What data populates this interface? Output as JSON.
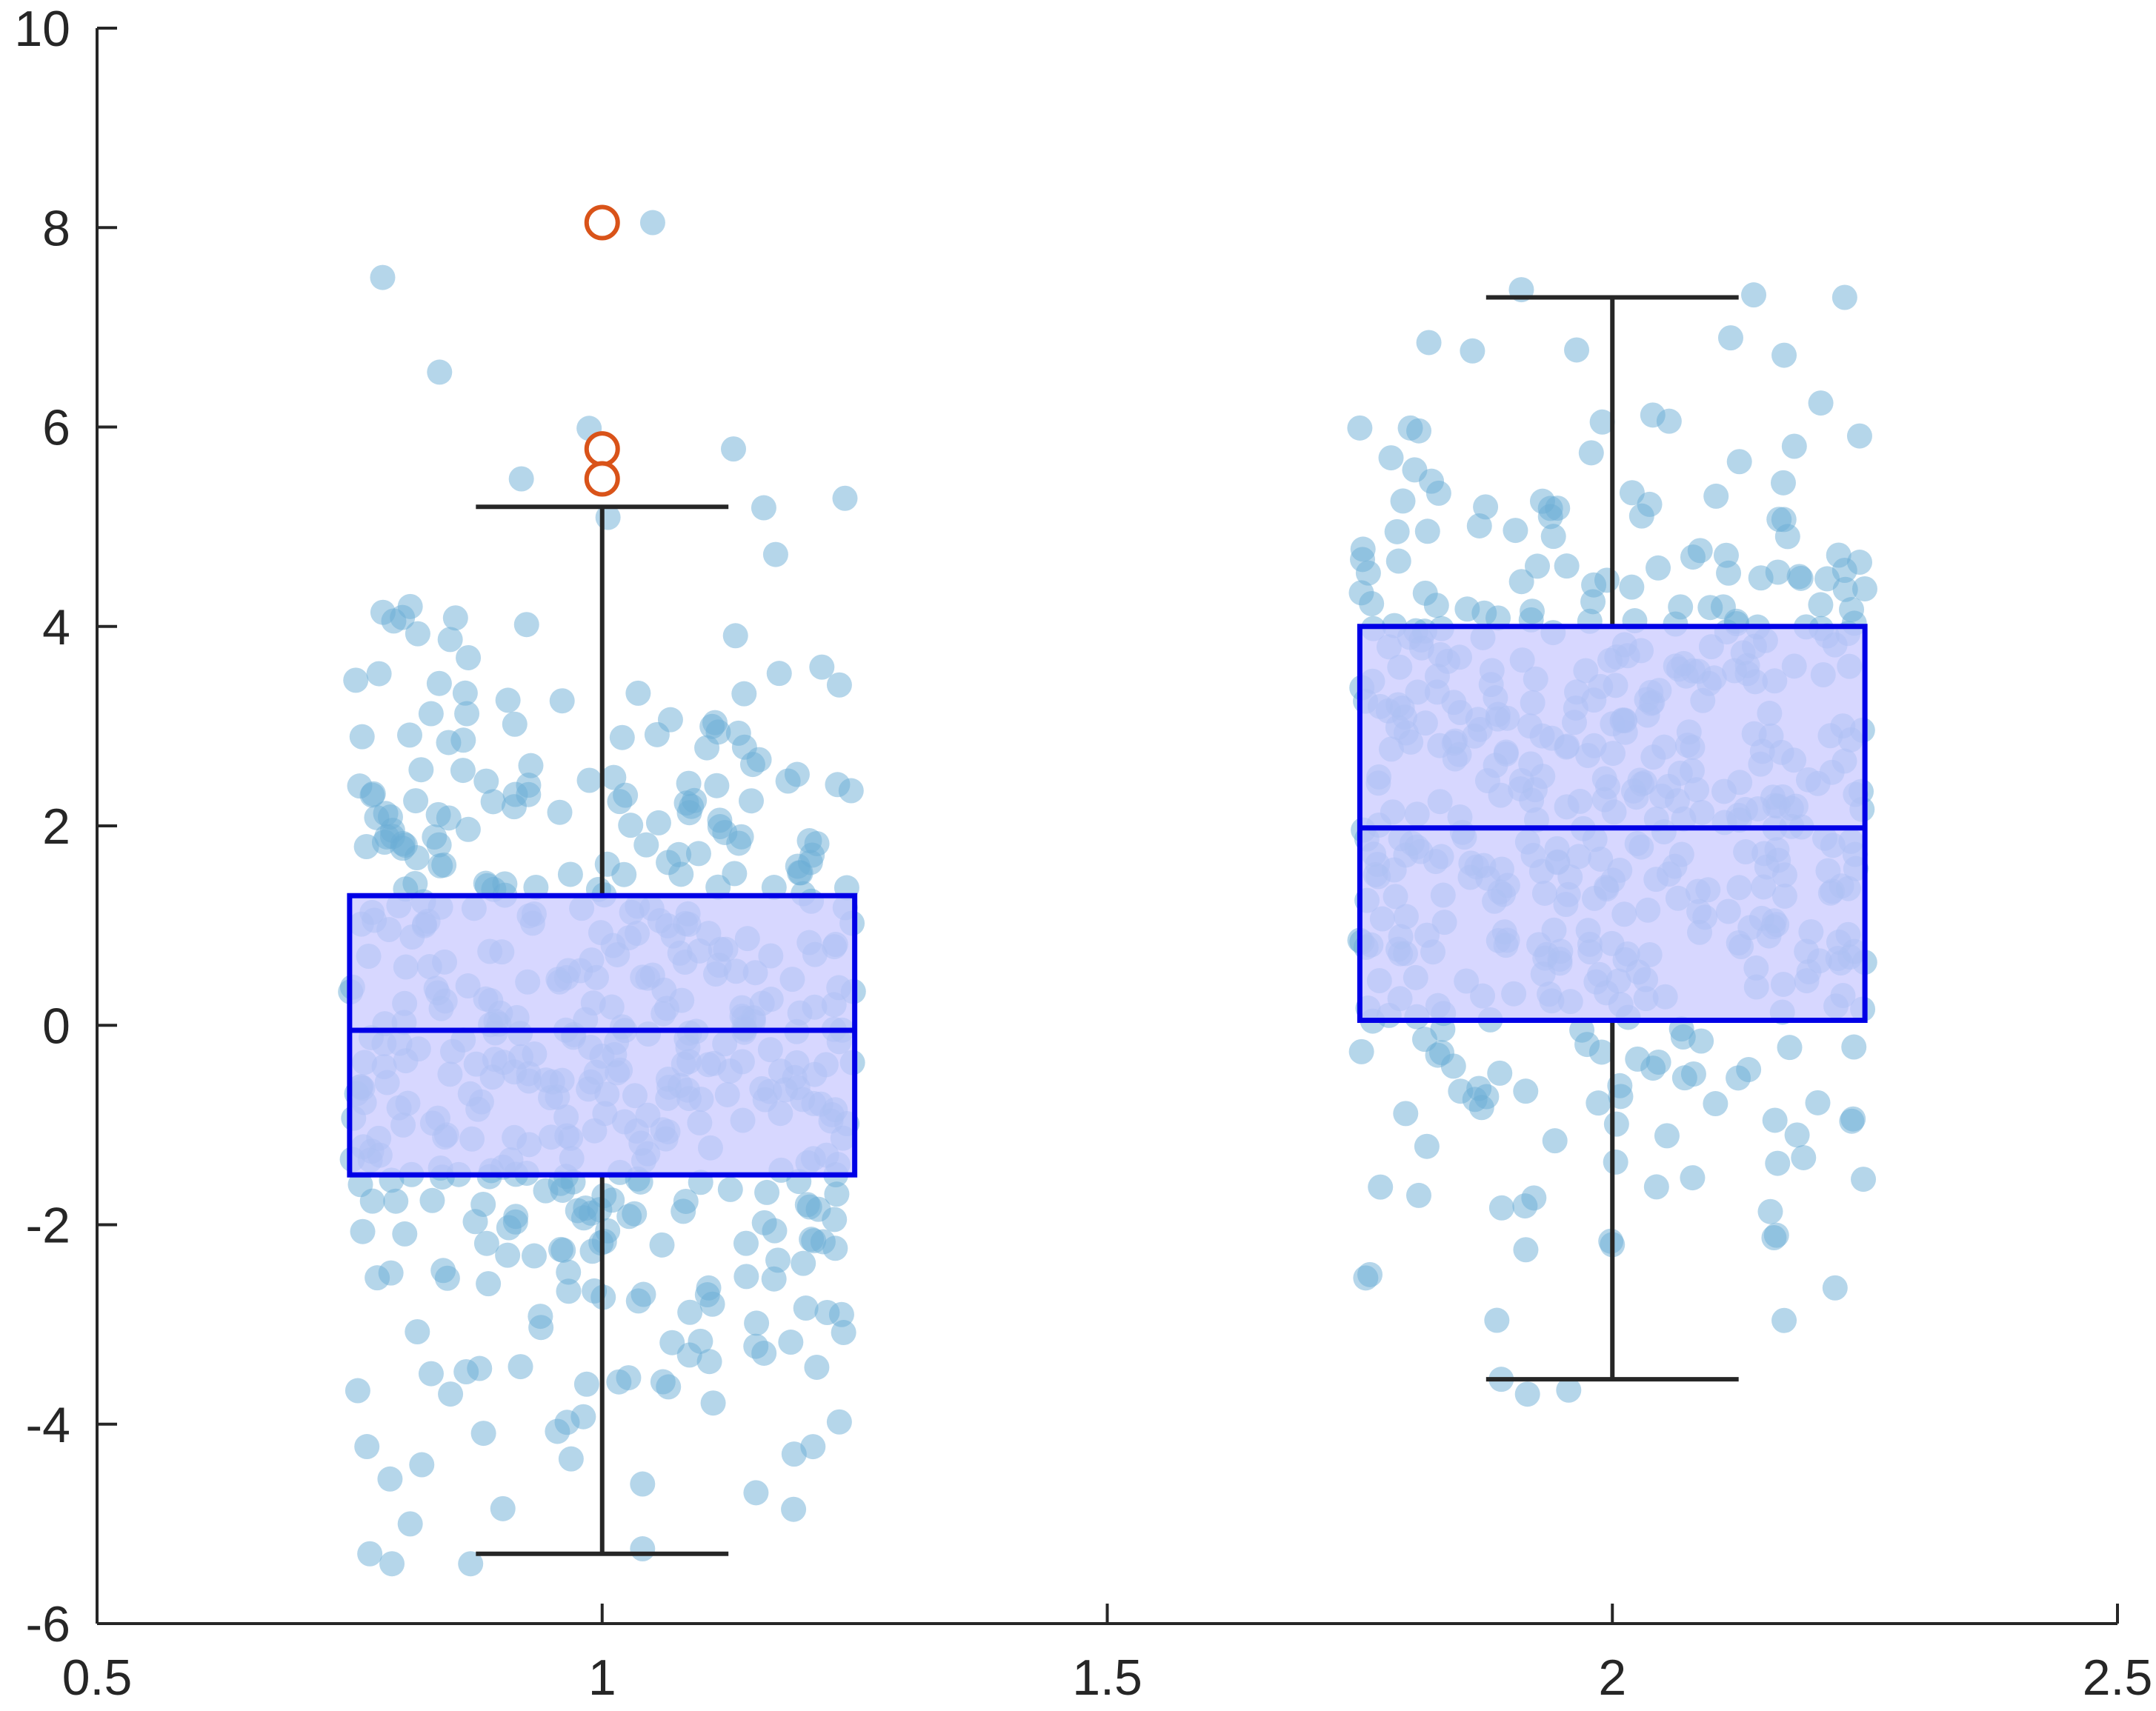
{
  "chart_data": {
    "type": "box",
    "title": "",
    "xlabel": "",
    "ylabel": "",
    "xlim": [
      0.5,
      2.5
    ],
    "ylim": [
      -6,
      10
    ],
    "xticks": [
      0.5,
      1,
      1.5,
      2,
      2.5
    ],
    "xtick_labels": [
      "0.5",
      "1",
      "1.5",
      "2",
      "2.5"
    ],
    "yticks": [
      -6,
      -4,
      -2,
      0,
      2,
      4,
      6,
      8,
      10
    ],
    "ytick_labels": [
      "-6",
      "-4",
      "-2",
      "0",
      "2",
      "4",
      "6",
      "8",
      "10"
    ],
    "grid": false,
    "colors": {
      "box_edge": "#0000e6",
      "box_fill": "#c8c8ff",
      "whisker": "#262626",
      "points": "#6baed6",
      "outlier": "#d95319",
      "axis": "#262626"
    },
    "boxes": [
      {
        "x": 1,
        "q1": -1.5,
        "median": -0.05,
        "q3": 1.3,
        "whisker_low": -5.3,
        "whisker_high": 5.2,
        "outliers": [
          8.05,
          5.78,
          5.48
        ]
      },
      {
        "x": 2,
        "q1": 0.05,
        "median": 1.98,
        "q3": 4.0,
        "whisker_low": -3.55,
        "whisker_high": 7.3,
        "outliers": []
      }
    ],
    "scatter_groups": [
      {
        "group": 1,
        "x_jitter_range": [
          0.75,
          1.25
        ],
        "n_points": 500,
        "mean": 0,
        "std": 2,
        "notable_points": [
          {
            "x": 1.05,
            "y": 8.05
          },
          {
            "x": 1.13,
            "y": 5.78
          },
          {
            "x": 0.92,
            "y": 5.48
          },
          {
            "x": 1.16,
            "y": 5.19
          },
          {
            "x": 0.81,
            "y": 4.2
          },
          {
            "x": 0.76,
            "y": 2.4
          },
          {
            "x": 0.77,
            "y": -5.3
          },
          {
            "x": 1.04,
            "y": -5.25
          },
          {
            "x": 0.79,
            "y": -4.55
          },
          {
            "x": 0.81,
            "y": -5.0
          },
          {
            "x": 1.04,
            "y": -4.6
          },
          {
            "x": 1.19,
            "y": -4.3
          }
        ]
      },
      {
        "group": 2,
        "x_jitter_range": [
          1.75,
          2.25
        ],
        "n_points": 500,
        "mean": 2,
        "std": 2,
        "notable_points": [
          {
            "x": 2.23,
            "y": 7.3
          },
          {
            "x": 2.17,
            "y": 6.72
          },
          {
            "x": 2.04,
            "y": 6.12
          },
          {
            "x": 1.75,
            "y": 5.99
          },
          {
            "x": 1.8,
            "y": 5.99
          },
          {
            "x": 1.99,
            "y": 6.05
          },
          {
            "x": 1.76,
            "y": -2.5
          },
          {
            "x": 1.89,
            "y": -3.55
          },
          {
            "x": 2.17,
            "y": -2.96
          },
          {
            "x": 2.16,
            "y": -2.13
          },
          {
            "x": 2.0,
            "y": -2.2
          }
        ]
      }
    ]
  }
}
